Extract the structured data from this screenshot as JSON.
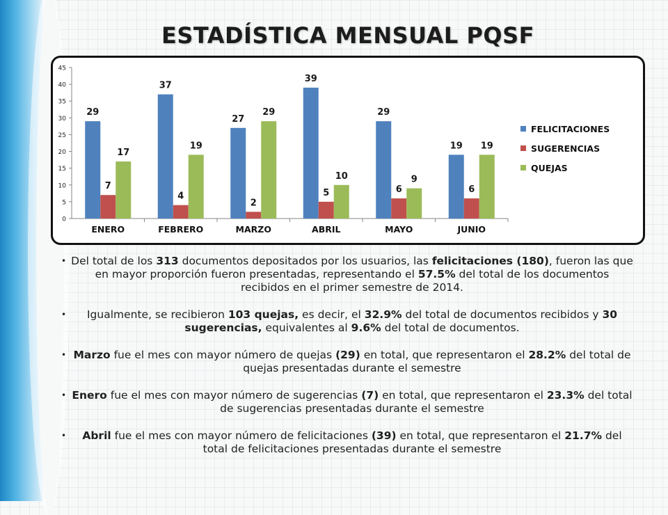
{
  "slide": {
    "title": "ESTADÍSTICA MENSUAL PQSF"
  },
  "chart_data": {
    "type": "bar",
    "categories": [
      "ENERO",
      "FEBRERO",
      "MARZO",
      "ABRIL",
      "MAYO",
      "JUNIO"
    ],
    "series": [
      {
        "name": "FELICITACIONES",
        "color": "#4f81bd",
        "values": [
          29,
          37,
          27,
          39,
          29,
          19
        ]
      },
      {
        "name": "SUGERENCIAS",
        "color": "#c0504d",
        "values": [
          7,
          4,
          2,
          5,
          6,
          6
        ]
      },
      {
        "name": "QUEJAS",
        "color": "#9bbb59",
        "values": [
          17,
          19,
          29,
          10,
          9,
          19
        ]
      }
    ],
    "ylim": [
      0,
      45
    ],
    "yticks": [
      0,
      5,
      10,
      15,
      20,
      25,
      30,
      35,
      40,
      45
    ],
    "grid": false,
    "legend": "right",
    "data_labels": true
  },
  "bullets": [
    {
      "parts": [
        {
          "t": "Del total de los ",
          "b": false
        },
        {
          "t": "313",
          "b": true
        },
        {
          "t": " documentos depositados por los usuarios, las ",
          "b": false
        },
        {
          "t": "felicitaciones (180)",
          "b": true
        },
        {
          "t": ", fueron las que en mayor proporción fueron presentadas, representando  el ",
          "b": false
        },
        {
          "t": "57.5%",
          "b": true
        },
        {
          "t": " del total de los documentos recibidos en el primer semestre de 2014.",
          "b": false
        }
      ]
    },
    {
      "parts": [
        {
          "t": "Igualmente, se recibieron ",
          "b": false
        },
        {
          "t": "103 quejas,",
          "b": true
        },
        {
          "t": " es decir, el ",
          "b": false
        },
        {
          "t": "32.9%",
          "b": true
        },
        {
          "t": " del total de documentos recibidos y ",
          "b": false
        },
        {
          "t": "30 sugerencias,",
          "b": true
        },
        {
          "t": " equivalentes al ",
          "b": false
        },
        {
          "t": "9.6%",
          "b": true
        },
        {
          "t": " del total de documentos.",
          "b": false
        }
      ]
    },
    {
      "parts": [
        {
          "t": "Marzo",
          "b": true
        },
        {
          "t": " fue el mes con mayor número de quejas ",
          "b": false
        },
        {
          "t": "(29)",
          "b": true
        },
        {
          "t": " en total, que representaron el ",
          "b": false
        },
        {
          "t": "28.2%",
          "b": true
        },
        {
          "t": " del total de quejas presentadas durante el semestre",
          "b": false
        }
      ]
    },
    {
      "parts": [
        {
          "t": "Enero",
          "b": true
        },
        {
          "t": " fue el mes con mayor número de sugerencias ",
          "b": false
        },
        {
          "t": "(7)",
          "b": true
        },
        {
          "t": " en total, que representaron el ",
          "b": false
        },
        {
          "t": "23.3%",
          "b": true
        },
        {
          "t": " del total de sugerencias presentadas durante el semestre",
          "b": false
        }
      ]
    },
    {
      "parts": [
        {
          "t": "Abril",
          "b": true
        },
        {
          "t": " fue el mes con mayor número de felicitaciones ",
          "b": false
        },
        {
          "t": "(39)",
          "b": true
        },
        {
          "t": " en total, que representaron el ",
          "b": false
        },
        {
          "t": "21.7%",
          "b": true
        },
        {
          "t": " del total de felicitaciones presentadas durante el semestre",
          "b": false
        }
      ]
    }
  ]
}
